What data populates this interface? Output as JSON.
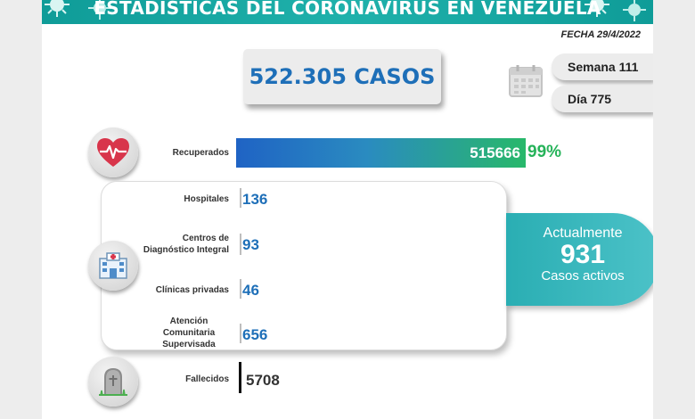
{
  "header": {
    "title": "ESTADÍSTICAS DEL CORONAVIRUS EN VENEZUELA"
  },
  "date_label": "FECHA 29/4/2022",
  "total_cases": "522.305 CASOS",
  "week_label": "Semana 111",
  "day_label": "Día 775",
  "recovered": {
    "label": "Recuperados",
    "value": "515666",
    "percent": "99%",
    "fill_fraction": 0.99,
    "icon": "heart-pulse-icon"
  },
  "locations": [
    {
      "label": "Hospitales",
      "value": "136"
    },
    {
      "label": "Centros de Diagnóstico Integral",
      "value": "93"
    },
    {
      "label": "Clínicas privadas",
      "value": "46"
    },
    {
      "label": "Atención Comunitaria Supervisada",
      "value": "656"
    }
  ],
  "locations_icon": "hospital-icon",
  "active": {
    "line1": "Actualmente",
    "number": "931",
    "line3": "Casos activos"
  },
  "deaths": {
    "label": "Fallecidos",
    "value": "5708",
    "icon": "tombstone-icon"
  },
  "colors": {
    "banner": "#1fb1ab",
    "blue": "#1e6fb8",
    "green": "#26b35a",
    "active": "#2aaeb3",
    "heart": "#d8354b"
  }
}
